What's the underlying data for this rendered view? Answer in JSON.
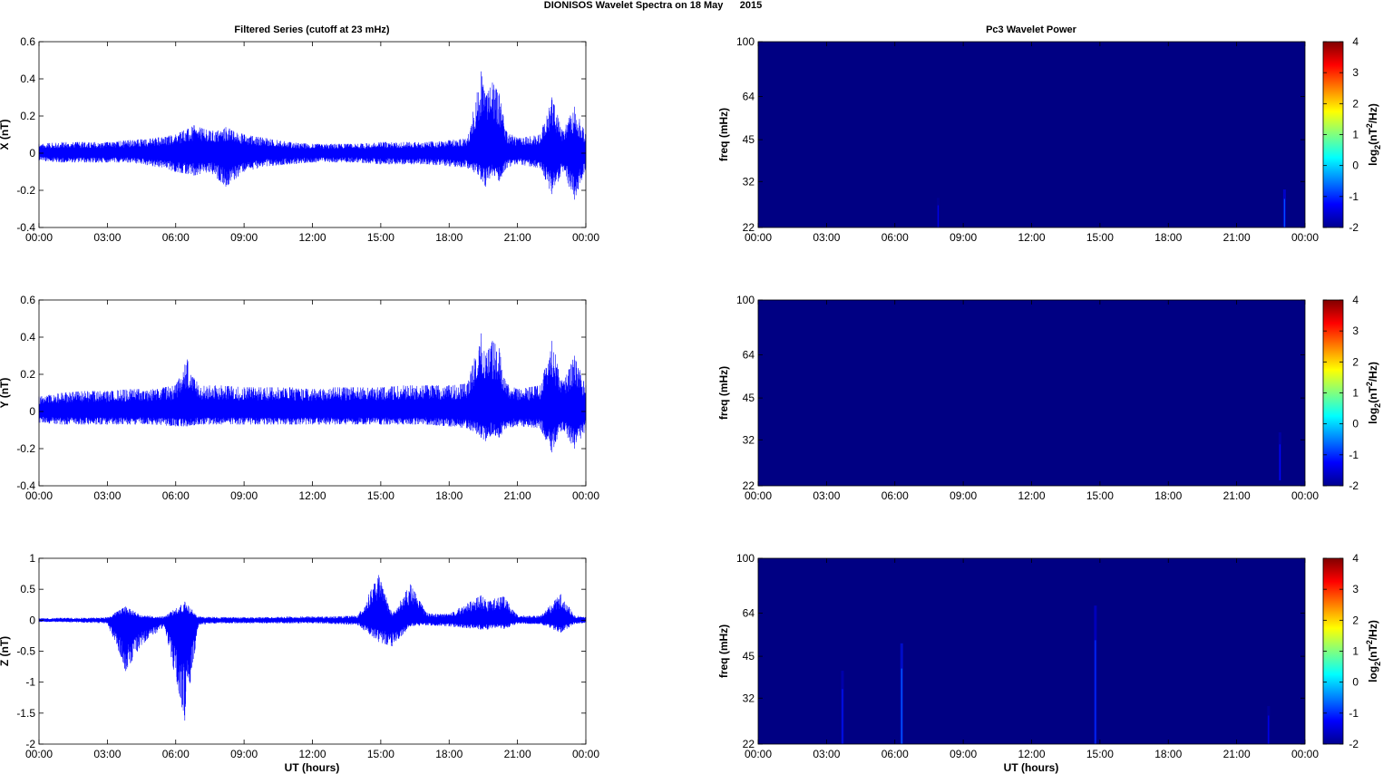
{
  "figure": {
    "title": "DIONISOS Wavelet Spectra on 18 May      2015",
    "left_title": "Filtered Series (cutoff at 23 mHz)",
    "right_title": "Pc3 Wavelet Power",
    "xlabel": "UT (hours)",
    "time_ticks": [
      "00:00",
      "03:00",
      "06:00",
      "09:00",
      "12:00",
      "15:00",
      "18:00",
      "21:00",
      "00:00"
    ]
  },
  "chart_data": [
    {
      "type": "line",
      "panel": "X",
      "ylabel": "X (nT)",
      "xlabel": "",
      "xlim_hours": [
        0,
        24
      ],
      "ylim": [
        -0.4,
        0.6
      ],
      "yticks": [
        "0.6",
        "0.4",
        "0.2",
        "0",
        "-0.2",
        "-0.4"
      ],
      "ytick_values": [
        0.6,
        0.4,
        0.2,
        0,
        -0.2,
        -0.4
      ],
      "color": "#0000ff",
      "series": [
        {
          "x_hours": [
            0,
            1,
            2,
            3,
            4,
            5,
            6,
            6.8,
            7.5,
            8.2,
            9,
            10,
            11,
            12,
            13,
            14,
            15,
            16,
            17,
            18,
            18.8,
            19.4,
            19.6,
            19.9,
            20.2,
            20.5,
            21,
            22,
            22.5,
            23,
            23.5,
            24
          ],
          "upper": [
            0.05,
            0.06,
            0.06,
            0.06,
            0.07,
            0.08,
            0.1,
            0.15,
            0.12,
            0.14,
            0.1,
            0.08,
            0.06,
            0.05,
            0.05,
            0.05,
            0.06,
            0.06,
            0.06,
            0.07,
            0.08,
            0.44,
            0.3,
            0.38,
            0.32,
            0.12,
            0.08,
            0.1,
            0.3,
            0.12,
            0.25,
            0.1
          ],
          "lower": [
            -0.04,
            -0.05,
            -0.05,
            -0.05,
            -0.05,
            -0.07,
            -0.1,
            -0.12,
            -0.1,
            -0.18,
            -0.1,
            -0.07,
            -0.06,
            -0.05,
            -0.05,
            -0.05,
            -0.06,
            -0.06,
            -0.06,
            -0.07,
            -0.08,
            -0.14,
            -0.18,
            -0.12,
            -0.15,
            -0.08,
            -0.06,
            -0.08,
            -0.22,
            -0.1,
            -0.25,
            -0.08
          ]
        }
      ]
    },
    {
      "type": "line",
      "panel": "Y",
      "ylabel": "Y (nT)",
      "xlabel": "",
      "xlim_hours": [
        0,
        24
      ],
      "ylim": [
        -0.4,
        0.6
      ],
      "yticks": [
        "0.6",
        "0.4",
        "0.2",
        "0",
        "-0.2",
        "-0.4"
      ],
      "ytick_values": [
        0.6,
        0.4,
        0.2,
        0,
        -0.2,
        -0.4
      ],
      "color": "#0000ff",
      "series": [
        {
          "x_hours": [
            0,
            1,
            2,
            3,
            4,
            5,
            6,
            6.5,
            7,
            8,
            9,
            10,
            11,
            12,
            13,
            14,
            15,
            16,
            17,
            18,
            18.8,
            19.4,
            19.6,
            19.9,
            20.2,
            20.5,
            21,
            22,
            22.5,
            23,
            23.5,
            24
          ],
          "upper": [
            0.08,
            0.1,
            0.11,
            0.11,
            0.12,
            0.12,
            0.14,
            0.28,
            0.14,
            0.14,
            0.13,
            0.13,
            0.13,
            0.12,
            0.13,
            0.13,
            0.13,
            0.14,
            0.14,
            0.14,
            0.15,
            0.42,
            0.3,
            0.38,
            0.34,
            0.15,
            0.12,
            0.14,
            0.38,
            0.15,
            0.3,
            0.14
          ],
          "lower": [
            -0.06,
            -0.07,
            -0.07,
            -0.07,
            -0.07,
            -0.07,
            -0.08,
            -0.08,
            -0.07,
            -0.07,
            -0.07,
            -0.07,
            -0.07,
            -0.07,
            -0.07,
            -0.07,
            -0.07,
            -0.07,
            -0.07,
            -0.08,
            -0.09,
            -0.14,
            -0.16,
            -0.12,
            -0.14,
            -0.09,
            -0.08,
            -0.09,
            -0.22,
            -0.1,
            -0.2,
            -0.1
          ]
        }
      ]
    },
    {
      "type": "line",
      "panel": "Z",
      "ylabel": "Z (nT)",
      "xlabel": "UT (hours)",
      "xlim_hours": [
        0,
        24
      ],
      "ylim": [
        -2,
        1
      ],
      "yticks": [
        "1",
        "0.5",
        "0",
        "-0.5",
        "-1",
        "-1.5",
        "-2"
      ],
      "ytick_values": [
        1,
        0.5,
        0,
        -0.5,
        -1,
        -1.5,
        -2
      ],
      "color": "#0000ff",
      "series": [
        {
          "x_hours": [
            0,
            1,
            2,
            3,
            3.8,
            4.5,
            5.5,
            6.4,
            7,
            8,
            9,
            10,
            11,
            12,
            13,
            14,
            14.9,
            15.5,
            16.3,
            17,
            18,
            19.4,
            19.7,
            20,
            20.4,
            21,
            22,
            22.9,
            23.5,
            24
          ],
          "upper": [
            0.03,
            0.04,
            0.04,
            0.05,
            0.22,
            0.08,
            0.06,
            0.3,
            0.06,
            0.05,
            0.05,
            0.05,
            0.06,
            0.06,
            0.06,
            0.08,
            0.73,
            0.1,
            0.58,
            0.12,
            0.1,
            0.4,
            0.3,
            0.35,
            0.38,
            0.08,
            0.07,
            0.42,
            0.08,
            0.05
          ],
          "lower": [
            -0.03,
            -0.03,
            -0.04,
            -0.05,
            -0.82,
            -0.4,
            -0.1,
            -1.62,
            -0.08,
            -0.05,
            -0.05,
            -0.05,
            -0.05,
            -0.05,
            -0.06,
            -0.08,
            -0.35,
            -0.42,
            -0.1,
            -0.08,
            -0.1,
            -0.15,
            -0.15,
            -0.12,
            -0.14,
            -0.06,
            -0.06,
            -0.2,
            -0.06,
            -0.04
          ]
        }
      ]
    },
    {
      "type": "heatmap",
      "panel": "X wavelet",
      "ylabel": "freq (mHz)",
      "xlabel": "",
      "xlim_hours": [
        0,
        24
      ],
      "ylim": [
        22,
        100
      ],
      "yscale": "log",
      "yticks": [
        "100",
        "64",
        "45",
        "32",
        "22"
      ],
      "ytick_values": [
        100,
        64,
        45,
        32,
        22
      ],
      "background_level": -2,
      "features": [
        {
          "x_hours": 7.9,
          "fmin": 22,
          "fmax": 28,
          "level": -1.8
        },
        {
          "x_hours": 23.1,
          "fmin": 22,
          "fmax": 30,
          "level": -1.1
        }
      ],
      "colorbar": {
        "label": "log2(nT^2/Hz)",
        "ticks": [
          "4",
          "3",
          "2",
          "1",
          "0",
          "-1",
          "-2"
        ],
        "range": [
          -2,
          4
        ]
      }
    },
    {
      "type": "heatmap",
      "panel": "Y wavelet",
      "ylabel": "freq (mHz)",
      "xlabel": "",
      "xlim_hours": [
        0,
        24
      ],
      "ylim": [
        22,
        100
      ],
      "yscale": "log",
      "yticks": [
        "100",
        "64",
        "45",
        "32",
        "22"
      ],
      "ytick_values": [
        100,
        64,
        45,
        32,
        22
      ],
      "background_level": -2,
      "features": [
        {
          "x_hours": 22.9,
          "fmin": 23,
          "fmax": 34,
          "level": -1.6
        }
      ],
      "colorbar": {
        "label": "log2(nT^2/Hz)",
        "ticks": [
          "4",
          "3",
          "2",
          "1",
          "0",
          "-1",
          "-2"
        ],
        "range": [
          -2,
          4
        ]
      }
    },
    {
      "type": "heatmap",
      "panel": "Z wavelet",
      "ylabel": "freq (mHz)",
      "xlabel": "UT (hours)",
      "xlim_hours": [
        0,
        24
      ],
      "ylim": [
        22,
        100
      ],
      "yscale": "log",
      "yticks": [
        "100",
        "64",
        "45",
        "32",
        "22"
      ],
      "ytick_values": [
        100,
        64,
        45,
        32,
        22
      ],
      "background_level": -2,
      "features": [
        {
          "x_hours": 3.7,
          "fmin": 22,
          "fmax": 40,
          "level": -1.5
        },
        {
          "x_hours": 6.3,
          "fmin": 22,
          "fmax": 50,
          "level": -1.0
        },
        {
          "x_hours": 14.8,
          "fmin": 22,
          "fmax": 68,
          "level": -1.3
        },
        {
          "x_hours": 22.4,
          "fmin": 22,
          "fmax": 30,
          "level": -1.7
        }
      ],
      "colorbar": {
        "label": "log2(nT^2/Hz)",
        "ticks": [
          "4",
          "3",
          "2",
          "1",
          "0",
          "-1",
          "-2"
        ],
        "range": [
          -2,
          4
        ]
      }
    }
  ]
}
